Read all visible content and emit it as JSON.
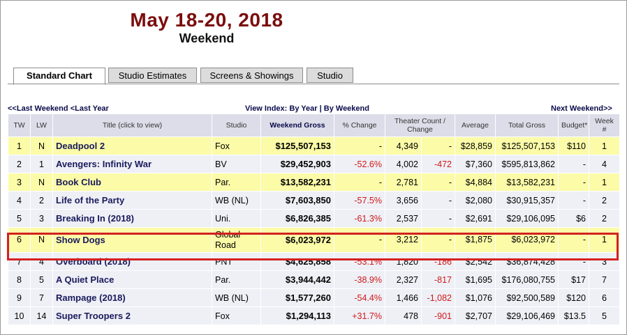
{
  "header": {
    "title": "May 18-20, 2018",
    "subtitle": "Weekend"
  },
  "tabs": [
    {
      "label": "Standard Chart",
      "active": true
    },
    {
      "label": "Studio Estimates",
      "active": false
    },
    {
      "label": "Screens & Showings",
      "active": false
    },
    {
      "label": "Studio",
      "active": false
    }
  ],
  "nav": {
    "last_weekend": "<<Last Weekend",
    "last_year": "<Last Year",
    "view_index_label": "View Index:",
    "by_year": "By Year",
    "separator": "|",
    "by_weekend": "By Weekend",
    "next_weekend": "Next Weekend>>"
  },
  "columns": {
    "tw": "TW",
    "lw": "LW",
    "title": "Title (click to view)",
    "studio": "Studio",
    "weekend_gross": "Weekend Gross",
    "pct_change": "% Change",
    "theater_count": "Theater Count / Change",
    "average": "Average",
    "total_gross": "Total Gross",
    "budget": "Budget*",
    "week": "Week #"
  },
  "rows": [
    {
      "tw": "1",
      "lw": "N",
      "title": "Deadpool 2",
      "studio": "Fox",
      "gross": "$125,507,153",
      "pct": "-",
      "theaters": "4,349",
      "tchange": "-",
      "avg": "$28,859",
      "total": "$125,507,153",
      "budget": "$110",
      "week": "1",
      "highlight": true
    },
    {
      "tw": "2",
      "lw": "1",
      "title": "Avengers: Infinity War",
      "studio": "BV",
      "gross": "$29,452,903",
      "pct": "-52.6%",
      "theaters": "4,002",
      "tchange": "-472",
      "avg": "$7,360",
      "total": "$595,813,862",
      "budget": "-",
      "week": "4",
      "highlight": false
    },
    {
      "tw": "3",
      "lw": "N",
      "title": "Book Club",
      "studio": "Par.",
      "gross": "$13,582,231",
      "pct": "-",
      "theaters": "2,781",
      "tchange": "-",
      "avg": "$4,884",
      "total": "$13,582,231",
      "budget": "-",
      "week": "1",
      "highlight": true
    },
    {
      "tw": "4",
      "lw": "2",
      "title": "Life of the Party",
      "studio": "WB (NL)",
      "gross": "$7,603,850",
      "pct": "-57.5%",
      "theaters": "3,656",
      "tchange": "-",
      "avg": "$2,080",
      "total": "$30,915,357",
      "budget": "-",
      "week": "2",
      "highlight": false
    },
    {
      "tw": "5",
      "lw": "3",
      "title": "Breaking In (2018)",
      "studio": "Uni.",
      "gross": "$6,826,385",
      "pct": "-61.3%",
      "theaters": "2,537",
      "tchange": "-",
      "avg": "$2,691",
      "total": "$29,106,095",
      "budget": "$6",
      "week": "2",
      "highlight": false
    },
    {
      "tw": "6",
      "lw": "N",
      "title": "Show Dogs",
      "studio": "Global Road",
      "gross": "$6,023,972",
      "pct": "-",
      "theaters": "3,212",
      "tchange": "-",
      "avg": "$1,875",
      "total": "$6,023,972",
      "budget": "-",
      "week": "1",
      "highlight": true
    },
    {
      "tw": "7",
      "lw": "4",
      "title": "Overboard (2018)",
      "studio": "PNT",
      "gross": "$4,625,858",
      "pct": "-53.1%",
      "theaters": "1,820",
      "tchange": "-186",
      "avg": "$2,542",
      "total": "$36,874,428",
      "budget": "-",
      "week": "3",
      "highlight": false
    },
    {
      "tw": "8",
      "lw": "5",
      "title": "A Quiet Place",
      "studio": "Par.",
      "gross": "$3,944,442",
      "pct": "-38.9%",
      "theaters": "2,327",
      "tchange": "-817",
      "avg": "$1,695",
      "total": "$176,080,755",
      "budget": "$17",
      "week": "7",
      "highlight": false
    },
    {
      "tw": "9",
      "lw": "7",
      "title": "Rampage (2018)",
      "studio": "WB (NL)",
      "gross": "$1,577,260",
      "pct": "-54.4%",
      "theaters": "1,466",
      "tchange": "-1,082",
      "avg": "$1,076",
      "total": "$92,500,589",
      "budget": "$120",
      "week": "6",
      "highlight": false
    },
    {
      "tw": "10",
      "lw": "14",
      "title": "Super Troopers 2",
      "studio": "Fox",
      "gross": "$1,294,113",
      "pct": "+31.7%",
      "theaters": "478",
      "tchange": "-901",
      "avg": "$2,707",
      "total": "$29,106,469",
      "budget": "$13.5",
      "week": "5",
      "highlight": false
    }
  ],
  "colors": {
    "title": "#7b0d0d",
    "highlight_row": "#fbfba8",
    "plain_row": "#eef0f6",
    "header_bg": "#dcdde8",
    "negative": "#d01818",
    "annotation_box": "#d42020"
  }
}
